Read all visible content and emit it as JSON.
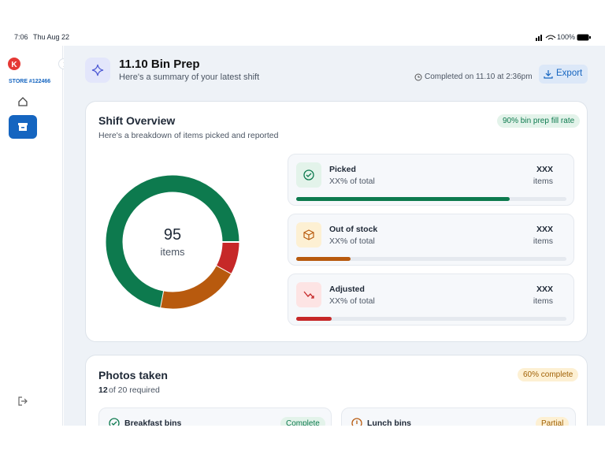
{
  "status_bar": {
    "time": "7:06",
    "date": "Thu Aug 22",
    "battery": "100%"
  },
  "sidebar": {
    "store": "STORE #122466"
  },
  "header": {
    "title": "11.10 Bin Prep",
    "subtitle": "Here's a summary of your latest shift",
    "completed": "Completed on 11.10 at 2:36pm",
    "export": "Export"
  },
  "overview": {
    "title": "Shift Overview",
    "subtitle": "Here's a breakdown of items picked and reported",
    "badge": "90% bin prep fill rate",
    "total": "95",
    "total_unit": "items",
    "donut": [
      {
        "color": "#c62828",
        "value": 8
      },
      {
        "color": "#b85a0e",
        "value": 20
      },
      {
        "color": "#0d7a4e",
        "value": 72
      }
    ],
    "rows": [
      {
        "label": "Picked",
        "share": "XX% of total",
        "count": "XXX",
        "unit": "items",
        "progress": 79,
        "color": "#0d7a4e",
        "icon_bg": "#e3f3ea"
      },
      {
        "label": "Out of stock",
        "share": "XX% of total",
        "count": "XXX",
        "unit": "items",
        "progress": 20,
        "color": "#b85a0e",
        "icon_bg": "#fdf0d3"
      },
      {
        "label": "Adjusted",
        "share": "XX% of total",
        "count": "XXX",
        "unit": "items",
        "progress": 13,
        "color": "#c62828",
        "icon_bg": "#fde4e4"
      }
    ]
  },
  "photos": {
    "title": "Photos taken",
    "count": "12",
    "required": "of 20 required",
    "badge": "60% complete",
    "bins": [
      {
        "label": "Breakfast bins",
        "status": "Complete"
      },
      {
        "label": "Lunch bins",
        "status": "Partial"
      }
    ]
  }
}
